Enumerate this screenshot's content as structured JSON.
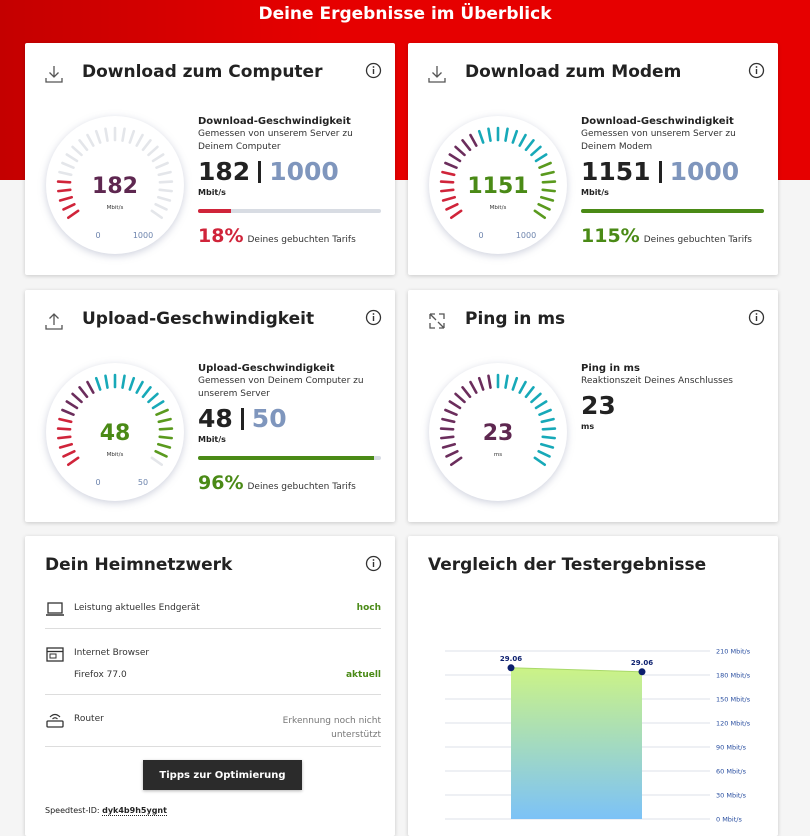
{
  "header": {
    "title": "Deine Ergebnisse im Überblick"
  },
  "speed_cards": [
    {
      "title": "Download zum Computer",
      "value": 182,
      "min": 0,
      "max": 1000,
      "unit": "Mbit/s",
      "heading": "Download-Geschwindigkeit",
      "description": "Gemessen von unserem Server zu Deinem Computer",
      "percent": {
        "value": 18,
        "label": "18%"
      },
      "percent_text": "Deines gebuchten Tarifs"
    },
    {
      "title": "Download zum Modem",
      "value": 1151,
      "min": 0,
      "max": 1000,
      "unit": "Mbit/s",
      "heading": "Download-Geschwindigkeit",
      "description": "Gemessen von unserem Server zu Deinem Modem",
      "percent": {
        "value": 115,
        "label": "115%"
      },
      "percent_text": "Deines gebuchten Tarifs"
    },
    {
      "title": "Upload-Geschwindigkeit",
      "value": 48,
      "min": 0,
      "max": 50,
      "unit": "Mbit/s",
      "heading": "Upload-Geschwindigkeit",
      "description": "Gemessen von Deinem Computer zu unserem Server",
      "percent": {
        "value": 96,
        "label": "96%"
      },
      "percent_text": "Deines gebuchten Tarifs"
    },
    {
      "title": "Ping in ms",
      "value": 23,
      "unit": "ms",
      "heading": "Ping in ms",
      "description": "Reaktionszeit Deines Anschlusses"
    }
  ],
  "home_network": {
    "title": "Dein Heimnetzwerk",
    "rows": [
      {
        "label": "Leistung aktuelles Endgerät",
        "status": "hoch"
      },
      {
        "label": "Internet Browser",
        "detail": "Firefox 77.0",
        "status": "aktuell"
      },
      {
        "label": "Router",
        "status": "Erkennung noch nicht unterstützt"
      }
    ],
    "button": "Tipps zur Optimierung",
    "speedtest_id_label": "Speedtest-ID:",
    "speedtest_id": "dyk4b9h5ygnt"
  },
  "comparison": {
    "title": "Vergleich der Testergebnisse",
    "chart": {
      "type": "area",
      "categories": [
        "29.06",
        "29.06"
      ],
      "values": [
        189,
        184
      ],
      "ylim": [
        0,
        210
      ],
      "yticks": [
        {
          "value": 0,
          "label": "0 Mbit/s"
        },
        {
          "value": 30,
          "label": "30 Mbit/s"
        },
        {
          "value": 60,
          "label": "60 Mbit/s"
        },
        {
          "value": 90,
          "label": "90 Mbit/s"
        },
        {
          "value": 120,
          "label": "120 Mbit/s"
        },
        {
          "value": 150,
          "label": "150 Mbit/s"
        },
        {
          "value": 180,
          "label": "180 Mbit/s"
        },
        {
          "value": 210,
          "label": "210 Mbit/s"
        }
      ],
      "grid": true
    }
  }
}
